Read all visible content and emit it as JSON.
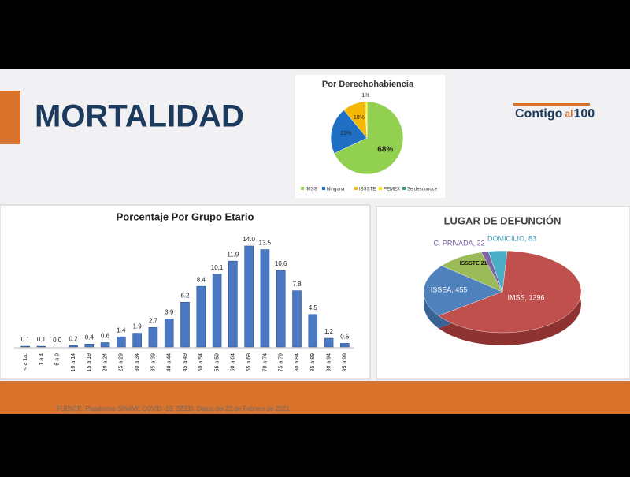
{
  "header": {
    "title": "MORTALIDAD",
    "logo": [
      "Contigo",
      "al",
      "100"
    ]
  },
  "footer": {
    "source": "FUENTE. Plataforma SINAVE COVID -19, SEED. Datos del 22 de Febrero de 2021"
  },
  "chart_data": [
    {
      "type": "pie",
      "title": "Por Derechohabiencia",
      "categories": [
        "IMSS",
        "Ninguna",
        "ISSSTE",
        "PEMEX",
        "Se desconoce"
      ],
      "values": [
        68,
        21,
        10,
        1,
        0
      ],
      "value_labels": [
        "68%",
        "21%",
        "10%",
        "1%",
        null
      ],
      "colors": [
        "#92d050",
        "#1f6fc5",
        "#f5b800",
        "#ffe600",
        "#2ea37a"
      ],
      "legend": "bottom"
    },
    {
      "type": "bar",
      "title": "Porcentaje Por Grupo Etario",
      "categories": [
        "< a 1a.",
        "1 a 4",
        "5 a 9",
        "10 a 14",
        "15 a 19",
        "20 a 24",
        "25 a 29",
        "30 a 34",
        "35 a 39",
        "40 a 44",
        "45 a 49",
        "50 a 54",
        "55 a 59",
        "60 a 64",
        "65 a 69",
        "70 a 74",
        "75 a 79",
        "80 a 84",
        "85 a 89",
        "90 a 94",
        "95 a 99"
      ],
      "values": [
        0.1,
        0.1,
        0.0,
        0.2,
        0.4,
        0.6,
        1.4,
        1.9,
        2.7,
        3.9,
        6.2,
        8.4,
        10.1,
        11.9,
        14.0,
        13.5,
        10.6,
        7.8,
        4.5,
        1.2,
        0.5
      ],
      "value_labels": [
        "0.1",
        "0.1",
        "0.0",
        "0.2",
        "0.4",
        "0.6",
        "1.4",
        "1.9",
        "2.7",
        "3.9",
        "6.2",
        "8.4",
        "10.1",
        "11.9",
        "14.0",
        "13.5",
        "10.6",
        "7.8",
        "4.5",
        "1.2",
        "0.5"
      ],
      "color": "#4a78c2"
    },
    {
      "type": "pie3d",
      "title": "LUGAR DE DEFUNCIÓN",
      "values": [
        1396,
        455,
        212,
        32,
        83
      ],
      "value_labels": [
        "IMSS, 1396",
        "ISSEA, 455",
        "ISSSTE 212",
        "C. PRIVADA, 32",
        "DOMICILIO, 83"
      ],
      "colors": [
        "#c0504d",
        "#4f81bd",
        "#9bbb59",
        "#8064a2",
        "#4bacc6"
      ]
    }
  ]
}
